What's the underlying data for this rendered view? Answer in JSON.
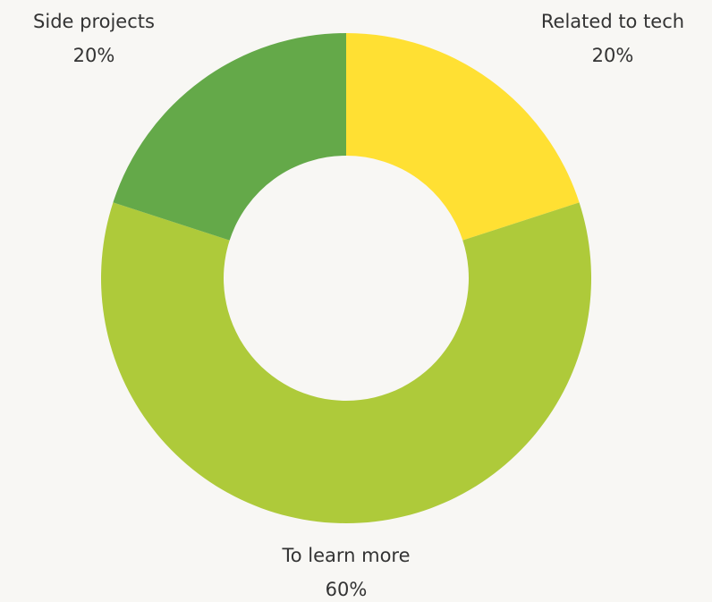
{
  "chart_data": {
    "type": "pie",
    "donut": true,
    "categories": [
      "Related to tech",
      "To learn more",
      "Side projects"
    ],
    "values": [
      20,
      60,
      20
    ],
    "value_labels": [
      "20%",
      "60%",
      "20%"
    ],
    "colors": [
      "#ffe033",
      "#aeca3a",
      "#64a949"
    ]
  }
}
